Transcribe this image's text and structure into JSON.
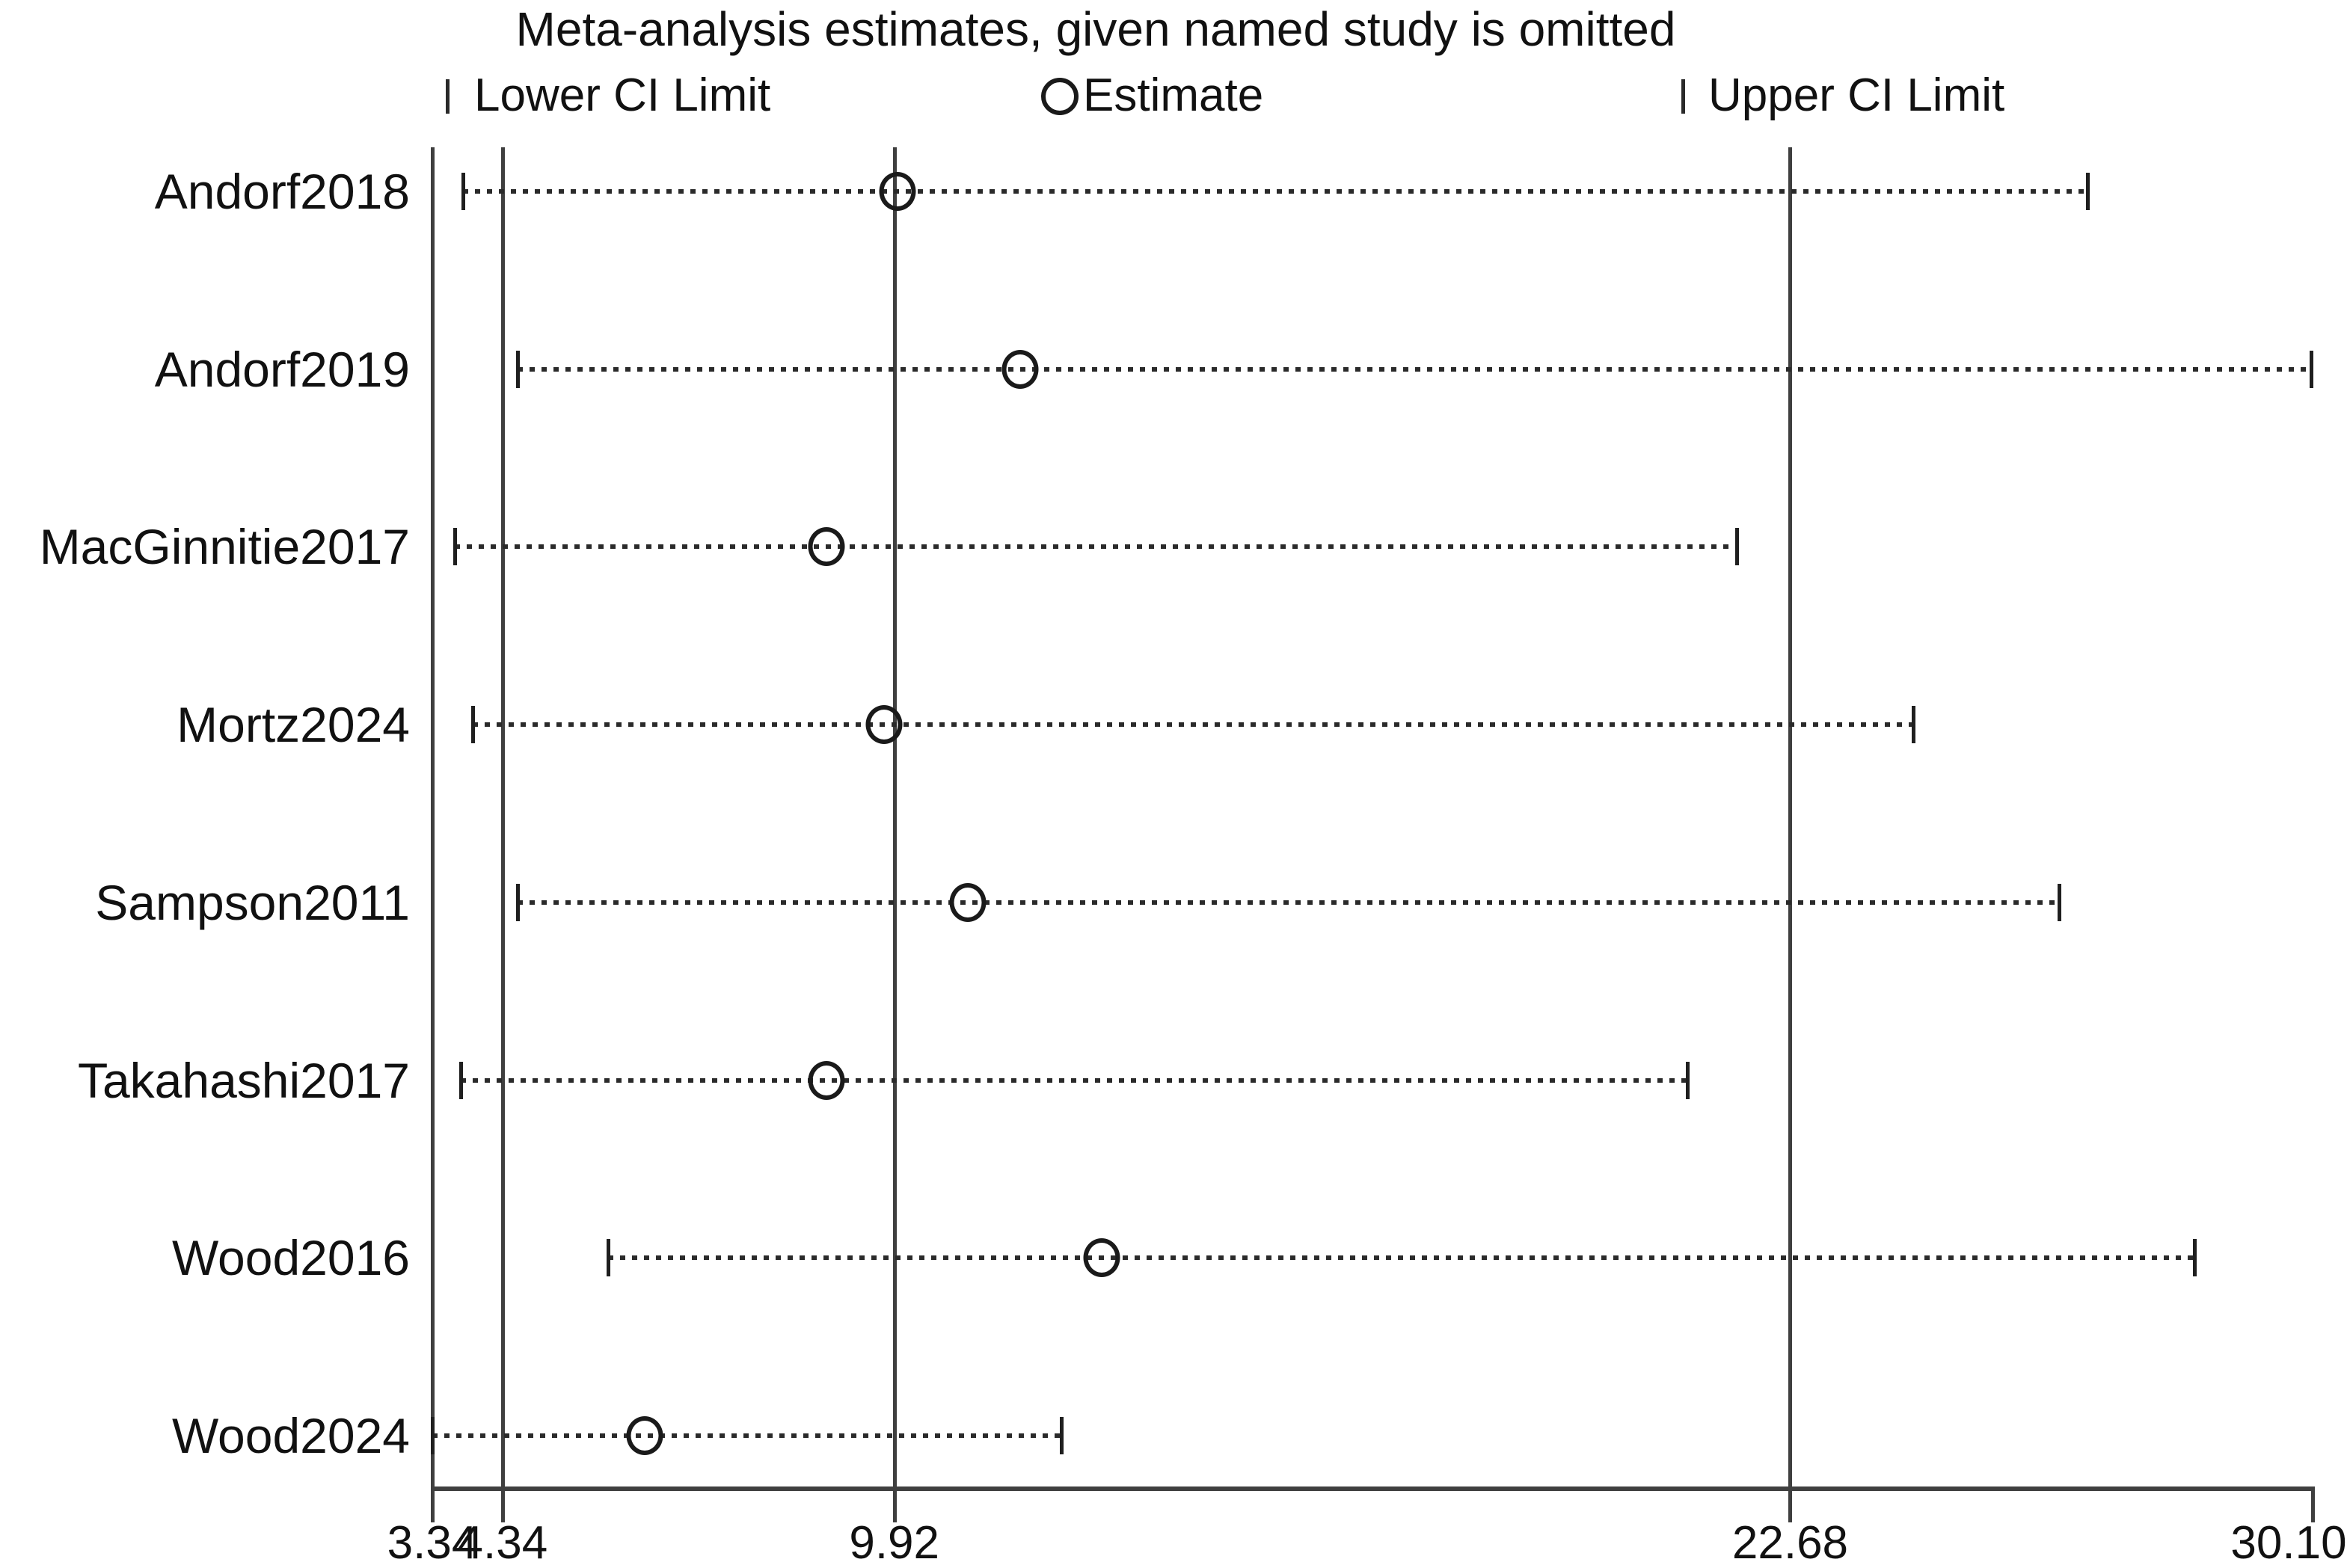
{
  "title": "Meta-analysis estimates, given named study is omitted",
  "legend": {
    "lower_label": "Lower CI Limit",
    "estimate_label": "Estimate",
    "upper_label": "Upper CI Limit"
  },
  "colors": {
    "ink": "#111111",
    "marker": "#1a1a1a",
    "line": "#3f3f3f",
    "background": "#ffffff"
  },
  "chart_data": {
    "type": "scatter",
    "subtype": "leave-one-out-forest-plot",
    "title": "Meta-analysis estimates, given named study is omitted",
    "legend_entries": [
      "Lower CI Limit",
      "Estimate",
      "Upper CI Limit"
    ],
    "legend_position": "top",
    "grid": false,
    "x_axis": {
      "min": 3.34,
      "max": 30.1,
      "tick_values": [
        3.34,
        4.34,
        9.92,
        22.68,
        30.1
      ],
      "tick_labels": [
        "3.34",
        "4.34",
        "9.92",
        "22.68",
        "30.10"
      ]
    },
    "reference_lines": {
      "overall_lower_ci": 4.34,
      "overall_estimate": 9.92,
      "overall_upper_ci": 22.68
    },
    "studies": [
      {
        "label": "Andorf2018",
        "lower": 3.78,
        "estimate": 9.97,
        "upper": 26.92
      },
      {
        "label": "Andorf2019",
        "lower": 4.55,
        "estimate": 11.71,
        "upper": 30.1
      },
      {
        "label": "MacGinnitie2017",
        "lower": 3.66,
        "estimate": 8.95,
        "upper": 21.92
      },
      {
        "label": "Mortz2024",
        "lower": 3.91,
        "estimate": 9.77,
        "upper": 24.43
      },
      {
        "label": "Sampson2011",
        "lower": 4.55,
        "estimate": 10.97,
        "upper": 26.51
      },
      {
        "label": "Takahashi2017",
        "lower": 3.75,
        "estimate": 8.95,
        "upper": 21.22
      },
      {
        "label": "Wood2016",
        "lower": 5.84,
        "estimate": 12.87,
        "upper": 28.44
      },
      {
        "label": "Wood2024",
        "lower": 3.34,
        "estimate": 6.37,
        "upper": 12.3
      }
    ]
  }
}
